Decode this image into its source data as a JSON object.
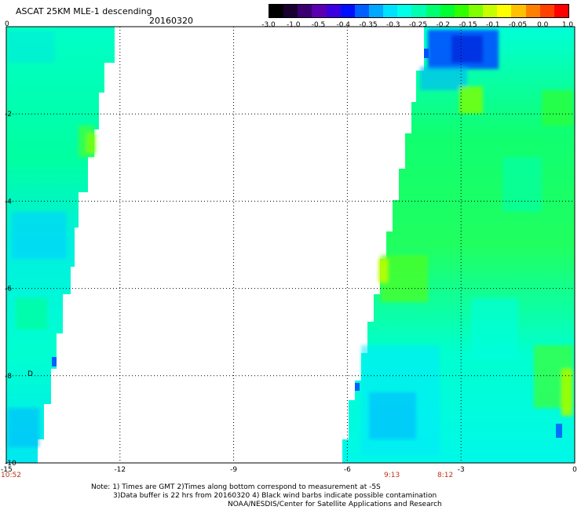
{
  "title": "ASCAT 25KM MLE-1 descending",
  "date": "20160320",
  "colorbar": {
    "labels": [
      "-3.0",
      "-1.0",
      "-0.5",
      "-0.4",
      "-0.35",
      "-0.3",
      "-0.25",
      "-0.2",
      "-0.15",
      "-0.1",
      "-0.05",
      "0.0",
      "1.0"
    ],
    "colors": [
      "#000000",
      "#1a0030",
      "#3a0070",
      "#5a00b0",
      "#3a00e0",
      "#0010ff",
      "#0060ff",
      "#00a8ff",
      "#00e0ff",
      "#00ffe8",
      "#00ffb0",
      "#00ff70",
      "#00ff30",
      "#30ff00",
      "#80ff00",
      "#c8ff00",
      "#ffff00",
      "#ffc000",
      "#ff8000",
      "#ff4000",
      "#ff0000"
    ]
  },
  "axes": {
    "x_ticks": [
      "-15",
      "-12",
      "-9",
      "-6",
      "-3",
      "0"
    ],
    "y_ticks": [
      "0",
      "-2",
      "-4",
      "-6",
      "-8",
      "-10"
    ],
    "x_range": [
      -15,
      0
    ],
    "y_range": [
      -10,
      0
    ]
  },
  "swath_times": [
    "10:52",
    "9:13",
    "8:12"
  ],
  "marker_label": "D",
  "notes": [
    "Note: 1) Times are GMT 2)Times along bottom correspond to measurement at -5S",
    "3)Data buffer is 22 hrs from 20160320 4) Black wind barbs indicate possible contamination",
    "NOAA/NESDIS/Center for Satellite Applications and Research"
  ]
}
